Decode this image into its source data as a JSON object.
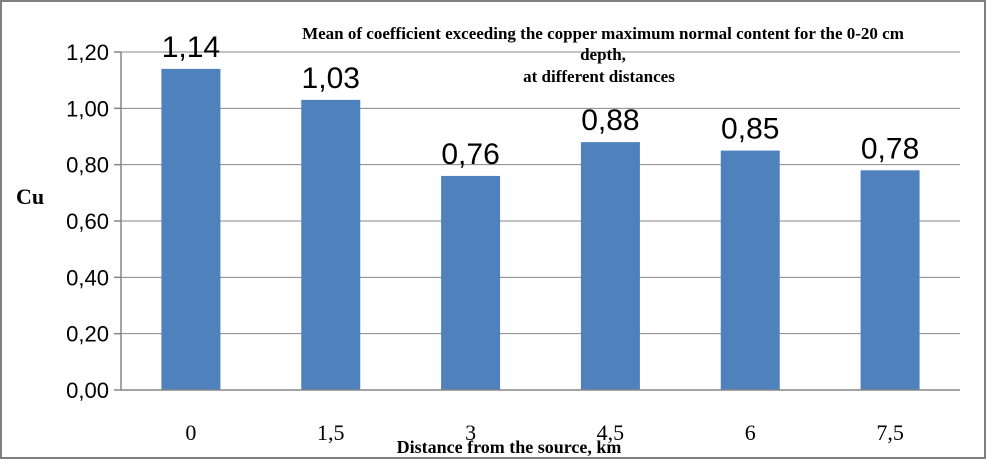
{
  "chart_data": {
    "type": "bar",
    "title_lines": [
      "Mean of coefficient exceeding the copper maximum normal content for the 0-20 cm",
      "depth,",
      "at different distances"
    ],
    "xlabel": "Distance from the source, km",
    "ylabel": "Cu",
    "categories": [
      "0",
      "1,5",
      "3",
      "4,5",
      "6",
      "7,5"
    ],
    "values": [
      1.14,
      1.03,
      0.76,
      0.88,
      0.85,
      0.78
    ],
    "value_labels": [
      "1,14",
      "1,03",
      "0,76",
      "0,88",
      "0,85",
      "0,78"
    ],
    "ylim": [
      0,
      1.2
    ],
    "yticks": [
      0,
      0.2,
      0.4,
      0.6,
      0.8,
      1.0,
      1.2
    ],
    "ytick_labels": [
      "0,00",
      "0,20",
      "0,40",
      "0,60",
      "0,80",
      "1,00",
      "1,20"
    ],
    "bar_color": "#4f81bd",
    "grid": true,
    "legend": "none"
  }
}
